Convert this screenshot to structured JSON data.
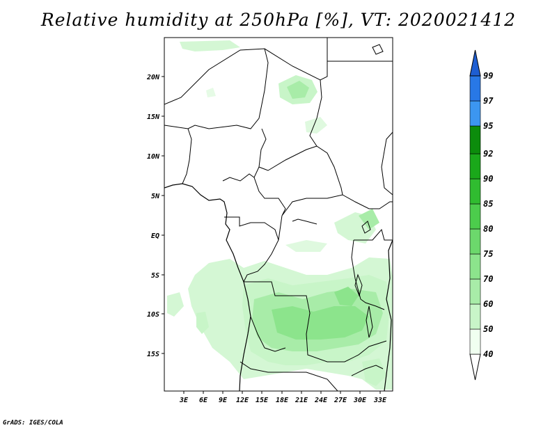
{
  "title": "Relative humidity at 250hPa [%], VT: 2020021412",
  "credit": "GrADS: IGES/COLA",
  "map": {
    "lon_ticks": [
      "3E",
      "6E",
      "9E",
      "12E",
      "15E",
      "18E",
      "21E",
      "24E",
      "27E",
      "30E",
      "33E"
    ],
    "lat_ticks": [
      "20N",
      "15N",
      "10N",
      "5N",
      "EQ",
      "5S",
      "10S",
      "15S"
    ]
  },
  "colorbar": {
    "levels": [
      "40",
      "50",
      "60",
      "70",
      "75",
      "80",
      "85",
      "90",
      "92",
      "95",
      "97",
      "99"
    ],
    "colors": [
      "#f0fff0",
      "#c8f5c8",
      "#a8eca8",
      "#8ce48c",
      "#6cd86c",
      "#4ccc4c",
      "#30bc30",
      "#1aa81a",
      "#0c8c0c",
      "#3c96f0",
      "#2878e6",
      "#1e5ed2"
    ]
  }
}
